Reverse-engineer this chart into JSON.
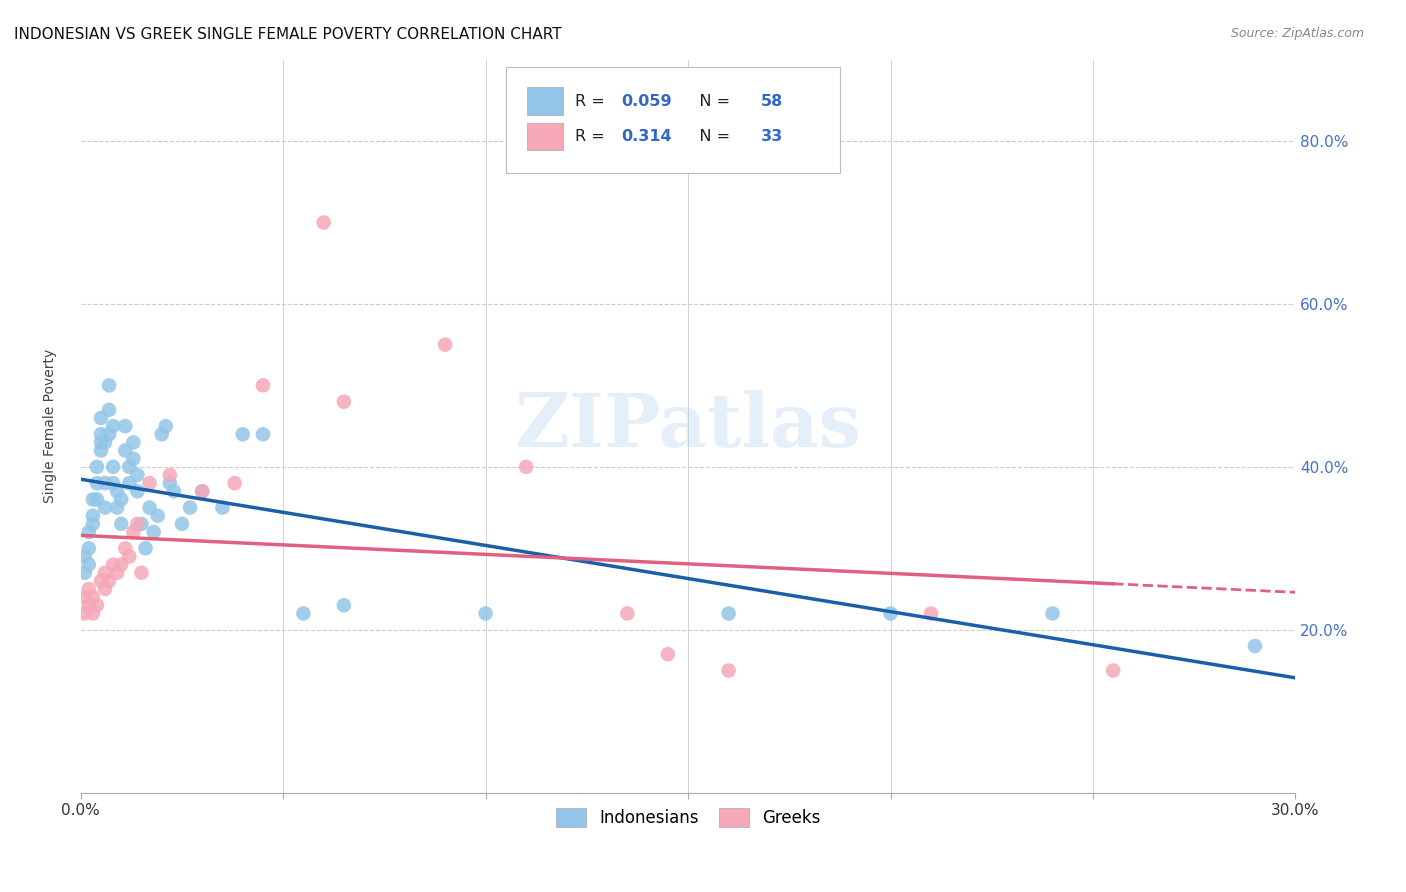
{
  "title": "INDONESIAN VS GREEK SINGLE FEMALE POVERTY CORRELATION CHART",
  "source": "Source: ZipAtlas.com",
  "ylabel": "Single Female Poverty",
  "R_indonesian": 0.059,
  "N_indonesian": 58,
  "R_greek": 0.314,
  "N_greek": 33,
  "color_indonesian": "#92C5E8",
  "color_greek": "#F4A8B8",
  "line_color_indonesian": "#1A5FA8",
  "line_color_greek": "#E06080",
  "background_color": "#ffffff",
  "indonesian_x": [
    0.001,
    0.001,
    0.002,
    0.002,
    0.002,
    0.003,
    0.003,
    0.003,
    0.004,
    0.004,
    0.004,
    0.005,
    0.005,
    0.005,
    0.005,
    0.006,
    0.006,
    0.006,
    0.007,
    0.007,
    0.007,
    0.008,
    0.008,
    0.008,
    0.009,
    0.009,
    0.01,
    0.01,
    0.011,
    0.011,
    0.012,
    0.012,
    0.013,
    0.013,
    0.014,
    0.014,
    0.015,
    0.016,
    0.017,
    0.018,
    0.019,
    0.02,
    0.021,
    0.022,
    0.023,
    0.025,
    0.027,
    0.03,
    0.035,
    0.04,
    0.045,
    0.055,
    0.065,
    0.1,
    0.16,
    0.2,
    0.24,
    0.29
  ],
  "indonesian_y": [
    0.27,
    0.29,
    0.3,
    0.32,
    0.28,
    0.34,
    0.33,
    0.36,
    0.38,
    0.4,
    0.36,
    0.43,
    0.44,
    0.42,
    0.46,
    0.35,
    0.38,
    0.43,
    0.44,
    0.47,
    0.5,
    0.38,
    0.4,
    0.45,
    0.35,
    0.37,
    0.33,
    0.36,
    0.42,
    0.45,
    0.38,
    0.4,
    0.41,
    0.43,
    0.37,
    0.39,
    0.33,
    0.3,
    0.35,
    0.32,
    0.34,
    0.44,
    0.45,
    0.38,
    0.37,
    0.33,
    0.35,
    0.37,
    0.35,
    0.44,
    0.44,
    0.22,
    0.23,
    0.22,
    0.22,
    0.22,
    0.22,
    0.18
  ],
  "greek_x": [
    0.001,
    0.001,
    0.002,
    0.002,
    0.003,
    0.003,
    0.004,
    0.005,
    0.006,
    0.006,
    0.007,
    0.008,
    0.009,
    0.01,
    0.011,
    0.012,
    0.013,
    0.014,
    0.015,
    0.017,
    0.022,
    0.03,
    0.038,
    0.045,
    0.06,
    0.065,
    0.09,
    0.11,
    0.135,
    0.145,
    0.16,
    0.21,
    0.255
  ],
  "greek_y": [
    0.22,
    0.24,
    0.23,
    0.25,
    0.22,
    0.24,
    0.23,
    0.26,
    0.25,
    0.27,
    0.26,
    0.28,
    0.27,
    0.28,
    0.3,
    0.29,
    0.32,
    0.33,
    0.27,
    0.38,
    0.39,
    0.37,
    0.38,
    0.5,
    0.7,
    0.48,
    0.55,
    0.4,
    0.22,
    0.17,
    0.15,
    0.22,
    0.15
  ],
  "xlim": [
    0.0,
    0.3
  ],
  "ylim": [
    0.0,
    0.9
  ],
  "watermark": "ZIPatlas",
  "title_fontsize": 11,
  "source_fontsize": 9
}
